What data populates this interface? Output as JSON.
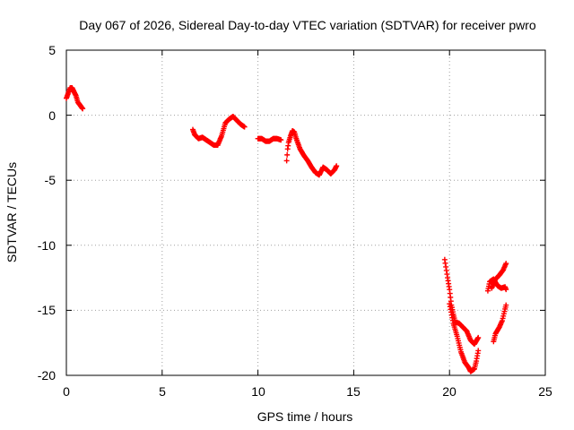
{
  "chart_data": {
    "type": "scatter",
    "title": "Day 067 of 2026, Sidereal Day-to-day VTEC variation (SDTVAR) for receiver pwro",
    "xlabel": "GPS time / hours",
    "ylabel": "SDTVAR / TECUs",
    "xlim": [
      0,
      25
    ],
    "ylim": [
      -20,
      5
    ],
    "xticks": [
      "0",
      "5",
      "10",
      "15",
      "20",
      "25"
    ],
    "yticks": [
      "5",
      "0",
      "-5",
      "-10",
      "-15",
      "-20"
    ],
    "grid": true,
    "marker": "plus",
    "color": "#ff0000",
    "series": [
      {
        "name": "SDTVAR",
        "segments": [
          [
            [
              0.0,
              1.3
            ],
            [
              0.1,
              1.7
            ],
            [
              0.2,
              2.1
            ],
            [
              0.3,
              2.1
            ],
            [
              0.4,
              1.8
            ],
            [
              0.5,
              1.5
            ],
            [
              0.6,
              1.0
            ],
            [
              0.7,
              0.8
            ],
            [
              0.85,
              0.5
            ]
          ],
          [
            [
              6.6,
              -1.1
            ],
            [
              6.7,
              -1.5
            ],
            [
              6.9,
              -1.8
            ],
            [
              7.1,
              -1.7
            ],
            [
              7.3,
              -1.9
            ],
            [
              7.5,
              -2.1
            ],
            [
              7.7,
              -2.3
            ],
            [
              7.9,
              -2.3
            ],
            [
              8.1,
              -1.6
            ],
            [
              8.3,
              -0.6
            ],
            [
              8.5,
              -0.3
            ],
            [
              8.7,
              -0.1
            ],
            [
              8.9,
              -0.4
            ],
            [
              9.1,
              -0.7
            ],
            [
              9.3,
              -0.9
            ]
          ],
          [
            [
              10.0,
              -1.8
            ],
            [
              10.2,
              -1.8
            ],
            [
              10.4,
              -2.0
            ],
            [
              10.6,
              -2.0
            ],
            [
              10.8,
              -1.8
            ],
            [
              11.0,
              -1.8
            ],
            [
              11.2,
              -1.9
            ]
          ],
          [
            [
              11.5,
              -3.5
            ],
            [
              11.55,
              -2.6
            ],
            [
              11.6,
              -2.1
            ],
            [
              11.7,
              -1.6
            ],
            [
              11.8,
              -1.2
            ],
            [
              11.9,
              -1.3
            ],
            [
              12.0,
              -1.8
            ],
            [
              12.2,
              -2.6
            ],
            [
              12.4,
              -3.1
            ],
            [
              12.6,
              -3.5
            ],
            [
              12.8,
              -4.0
            ],
            [
              13.0,
              -4.4
            ],
            [
              13.2,
              -4.6
            ],
            [
              13.4,
              -4.0
            ],
            [
              13.6,
              -4.2
            ],
            [
              13.8,
              -4.5
            ],
            [
              14.0,
              -4.2
            ],
            [
              14.1,
              -3.9
            ]
          ],
          [
            [
              19.75,
              -11.1
            ],
            [
              19.9,
              -12.5
            ],
            [
              20.0,
              -13.4
            ],
            [
              20.1,
              -14.6
            ],
            [
              20.2,
              -15.3
            ],
            [
              20.3,
              -15.9
            ],
            [
              20.5,
              -16.0
            ],
            [
              20.7,
              -16.3
            ],
            [
              20.9,
              -16.6
            ],
            [
              21.1,
              -17.3
            ],
            [
              21.3,
              -17.6
            ],
            [
              21.5,
              -17.1
            ]
          ],
          [
            [
              20.0,
              -14.5
            ],
            [
              20.2,
              -16.0
            ],
            [
              20.4,
              -17.0
            ],
            [
              20.6,
              -18.2
            ],
            [
              20.8,
              -19.0
            ],
            [
              21.0,
              -19.4
            ],
            [
              21.1,
              -19.7
            ],
            [
              21.3,
              -19.5
            ],
            [
              21.4,
              -18.9
            ],
            [
              21.5,
              -18.1
            ]
          ],
          [
            [
              22.0,
              -13.5
            ],
            [
              22.1,
              -12.8
            ],
            [
              22.3,
              -12.6
            ],
            [
              22.5,
              -13.1
            ],
            [
              22.7,
              -13.3
            ],
            [
              22.9,
              -13.2
            ],
            [
              22.95,
              -13.4
            ]
          ],
          [
            [
              22.3,
              -17.4
            ],
            [
              22.4,
              -16.8
            ],
            [
              22.6,
              -16.3
            ],
            [
              22.75,
              -15.8
            ],
            [
              22.9,
              -14.9
            ],
            [
              22.95,
              -14.6
            ]
          ],
          [
            [
              22.2,
              -13.3
            ],
            [
              22.4,
              -12.6
            ],
            [
              22.6,
              -12.3
            ],
            [
              22.8,
              -11.9
            ],
            [
              22.95,
              -11.4
            ]
          ]
        ]
      }
    ]
  }
}
